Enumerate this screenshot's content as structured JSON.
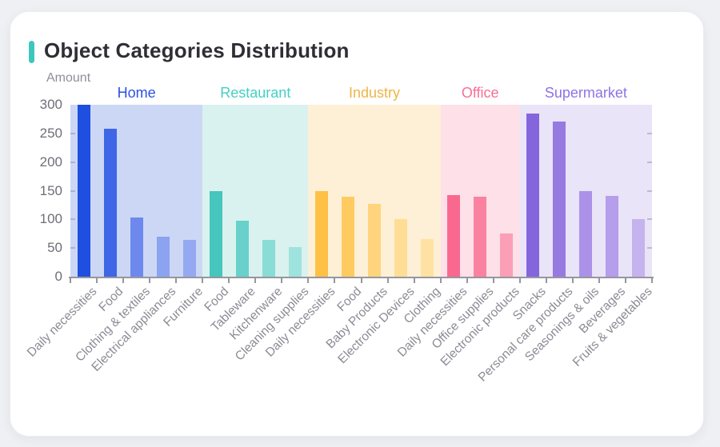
{
  "header": {
    "title": "Object Categories Distribution",
    "accent_color": "#3fc6bc"
  },
  "chart_data": {
    "type": "bar",
    "title": "Object Categories Distribution",
    "xlabel": "",
    "ylabel": "Amount",
    "ylim": [
      0,
      300
    ],
    "yticks": [
      0,
      50,
      100,
      150,
      200,
      250,
      300
    ],
    "grid": false,
    "legend_position": "none",
    "axis_color": "#96969e",
    "groups": [
      {
        "name": "Home",
        "label_color": "#2b50e3",
        "panel_color": "#ccd7f5",
        "bar_colors": [
          "#1e4fe0",
          "#3e66e6",
          "#6d89ee",
          "#8ba3f1",
          "#95a9f2"
        ],
        "items": [
          {
            "label": "Daily necessities",
            "value": 300
          },
          {
            "label": "Food",
            "value": 258
          },
          {
            "label": "Clothing & textiles",
            "value": 103
          },
          {
            "label": "Electrical appliances",
            "value": 70
          },
          {
            "label": "Furniture",
            "value": 64
          }
        ]
      },
      {
        "name": "Restaurant",
        "label_color": "#45cfc4",
        "panel_color": "#d9f2ef",
        "bar_colors": [
          "#46c6bc",
          "#67d1ca",
          "#8adcd6",
          "#9fe3de"
        ],
        "items": [
          {
            "label": "Food",
            "value": 149
          },
          {
            "label": "Tableware",
            "value": 97
          },
          {
            "label": "Kitchenware",
            "value": 64
          },
          {
            "label": "Cleaning supplies",
            "value": 52
          }
        ]
      },
      {
        "name": "Industry",
        "label_color": "#edb545",
        "panel_color": "#fdf0d6",
        "bar_colors": [
          "#ffc145",
          "#ffcb61",
          "#ffd47c",
          "#ffdd95",
          "#ffe2a3"
        ],
        "items": [
          {
            "label": "Daily necessities",
            "value": 150
          },
          {
            "label": "Food",
            "value": 140
          },
          {
            "label": "Baby Products",
            "value": 127
          },
          {
            "label": "Electronic Devices",
            "value": 100
          },
          {
            "label": "Clothing",
            "value": 65
          }
        ]
      },
      {
        "name": "Office",
        "label_color": "#fa6e94",
        "panel_color": "#fde0e8",
        "bar_colors": [
          "#f9688e",
          "#fa82a0",
          "#fb9fb6"
        ],
        "items": [
          {
            "label": "Daily necessities",
            "value": 143
          },
          {
            "label": "Office supplies",
            "value": 140
          },
          {
            "label": "Electronic products",
            "value": 76
          }
        ]
      },
      {
        "name": "Supermarket",
        "label_color": "#8f72e6",
        "panel_color": "#e9e4f8",
        "bar_colors": [
          "#8465dc",
          "#9779e2",
          "#ab92e8",
          "#b59eeb",
          "#c5b3ef"
        ],
        "items": [
          {
            "label": "Snacks",
            "value": 285
          },
          {
            "label": "Personal care products",
            "value": 271
          },
          {
            "label": "Seasonings & oils",
            "value": 149
          },
          {
            "label": "Beverages",
            "value": 141
          },
          {
            "label": "Fruits & vegetables",
            "value": 101
          }
        ]
      }
    ]
  }
}
